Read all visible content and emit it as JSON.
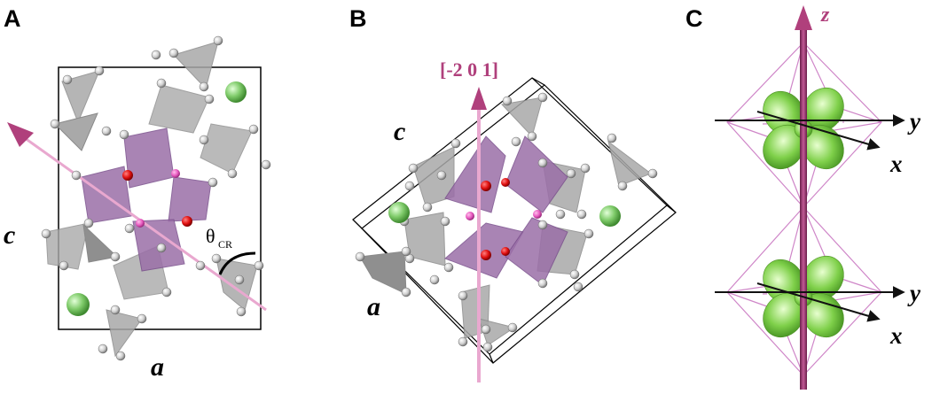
{
  "panels": [
    {
      "id": "A",
      "label": "A",
      "axis_a": "a",
      "axis_c": "c",
      "angle_symbol": "θ",
      "angle_subscript": "CR"
    },
    {
      "id": "B",
      "label": "B",
      "axis_a": "a",
      "axis_c": "c",
      "direction": "[-2 0 1]"
    },
    {
      "id": "C",
      "label": "C",
      "axis_z": "z",
      "axis_y_top": "y",
      "axis_x_top": "x",
      "axis_y_bottom": "y",
      "axis_x_bottom": "x"
    }
  ],
  "colors": {
    "octahedron_purple": "#9b6fa8",
    "octahedron_purple_dark": "#7a4f8c",
    "tetrahedron_gray": "#a8a8a8",
    "atom_white": "#e6e6e6",
    "atom_red": "#e01010",
    "atom_pink": "#e85ac0",
    "atom_green": "#7fcb6a",
    "axis_magenta": "#b0407c",
    "axis_line_pink": "#e9a8cf",
    "orbital_green": "#7fd04a",
    "octa_outline": "#cf86c8"
  }
}
